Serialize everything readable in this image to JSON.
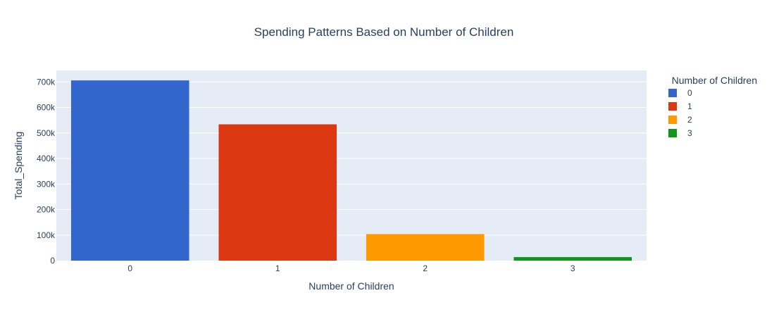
{
  "chart_data": {
    "type": "bar",
    "title": "Spending Patterns Based on Number of Children",
    "xlabel": "Number of Children",
    "ylabel": "Total_Spending",
    "categories": [
      "0",
      "1",
      "2",
      "3"
    ],
    "series": [
      {
        "name": "0",
        "category": "0",
        "value": 706000,
        "color": "#3366cc"
      },
      {
        "name": "1",
        "category": "1",
        "value": 534000,
        "color": "#dc3912"
      },
      {
        "name": "2",
        "category": "2",
        "value": 104000,
        "color": "#ff9900"
      },
      {
        "name": "3",
        "category": "3",
        "value": 14000,
        "color": "#109618"
      }
    ],
    "ylim": [
      0,
      745000
    ],
    "yticks": [
      0,
      100000,
      200000,
      300000,
      400000,
      500000,
      600000,
      700000
    ],
    "ytick_labels": [
      "0",
      "100k",
      "200k",
      "300k",
      "400k",
      "500k",
      "600k",
      "700k"
    ],
    "grid": true,
    "plot_background": "#e5ecf6",
    "legend": {
      "title": "Number of Children",
      "placement": "top-right"
    }
  }
}
